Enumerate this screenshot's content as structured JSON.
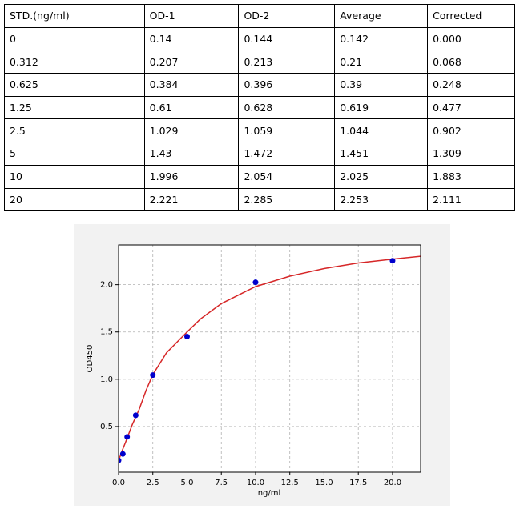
{
  "table": {
    "header": [
      "STD.(ng/ml)",
      "OD-1",
      "OD-2",
      "Average",
      "Corrected"
    ],
    "rows": [
      [
        "0",
        "0.14",
        "0.144",
        "0.142",
        "0.000"
      ],
      [
        "0.312",
        "0.207",
        "0.213",
        "0.21",
        "0.068"
      ],
      [
        "0.625",
        "0.384",
        "0.396",
        "0.39",
        "0.248"
      ],
      [
        "1.25",
        "0.61",
        "0.628",
        "0.619",
        "0.477"
      ],
      [
        "2.5",
        "1.029",
        "1.059",
        "1.044",
        "0.902"
      ],
      [
        "5",
        "1.43",
        "1.472",
        "1.451",
        "1.309"
      ],
      [
        "10",
        "1.996",
        "2.054",
        "2.025",
        "1.883"
      ],
      [
        "20",
        "2.221",
        "2.285",
        "2.253",
        "2.111"
      ]
    ]
  },
  "chart_data": {
    "type": "scatter",
    "x_label": "ng/ml",
    "y_label": "OD450",
    "xlim": [
      0,
      22.05
    ],
    "ylim": [
      0.017,
      2.42
    ],
    "xticks": [
      {
        "value": 0,
        "label": "0.0"
      },
      2.5,
      {
        "value": 5,
        "label": "5.0"
      },
      7.5,
      {
        "value": 10,
        "label": "10.0"
      },
      12.5,
      {
        "value": 15,
        "label": "15.0"
      },
      17.5,
      {
        "value": 20,
        "label": "20.0"
      }
    ],
    "yticks": [
      0.5,
      {
        "value": 1,
        "label": "1.0"
      },
      1.5,
      {
        "value": 2,
        "label": "2.0"
      }
    ],
    "grid": true,
    "series": [
      {
        "mark": "point",
        "color": "#0000cc",
        "x": [
          0,
          0.312,
          0.625,
          1.25,
          2.5,
          5,
          10,
          20
        ],
        "values": [
          0.142,
          0.21,
          0.39,
          0.619,
          1.044,
          1.451,
          2.025,
          2.253
        ]
      },
      {
        "mark": "line",
        "color": "#d62728",
        "x": [
          0,
          0.25,
          0.5,
          1,
          1.5,
          2,
          2.5,
          3.5,
          5,
          6,
          7.5,
          10,
          12.5,
          15,
          17.5,
          20,
          22.05
        ],
        "values": [
          0.14,
          0.24,
          0.33,
          0.52,
          0.68,
          0.88,
          1.05,
          1.28,
          1.5,
          1.64,
          1.8,
          1.98,
          2.09,
          2.17,
          2.23,
          2.27,
          2.3
        ]
      }
    ]
  }
}
